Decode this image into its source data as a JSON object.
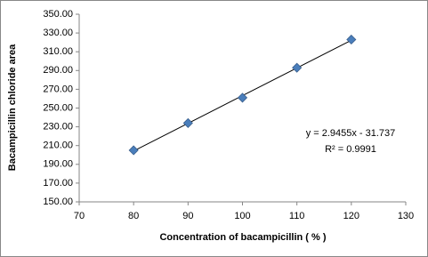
{
  "chart_data": {
    "type": "scatter",
    "x_label": "Concentration of bacampicillin  ( % )",
    "y_label": "Bacampicillin  chloride area",
    "series": [
      {
        "name": "Bacampicillin chloride area",
        "color": "#4a7ebb",
        "x": [
          80,
          90,
          100,
          110,
          120
        ],
        "values": [
          205,
          234,
          261,
          293,
          323
        ]
      }
    ],
    "trendline": true,
    "annotations": [
      "y = 2.9455x - 31.737",
      "R² = 0.9991"
    ],
    "xlim": [
      70,
      130
    ],
    "xticks": [
      70,
      80,
      90,
      100,
      110,
      120,
      130
    ],
    "ylim": [
      150,
      350
    ],
    "yticks": [
      {
        "value": 150,
        "label": "150.00"
      },
      {
        "value": 170,
        "label": "170.00"
      },
      {
        "value": 190,
        "label": "190.00"
      },
      {
        "value": 210,
        "label": "210.00"
      },
      {
        "value": 230,
        "label": "230.00"
      },
      {
        "value": 250,
        "label": "250.00"
      },
      {
        "value": 270,
        "label": "270.00"
      },
      {
        "value": 290,
        "label": "290.00"
      },
      {
        "value": 310,
        "label": "310.00"
      },
      {
        "value": 330,
        "label": "330.00"
      },
      {
        "value": 350,
        "label": "350.00"
      }
    ],
    "grid": false
  }
}
